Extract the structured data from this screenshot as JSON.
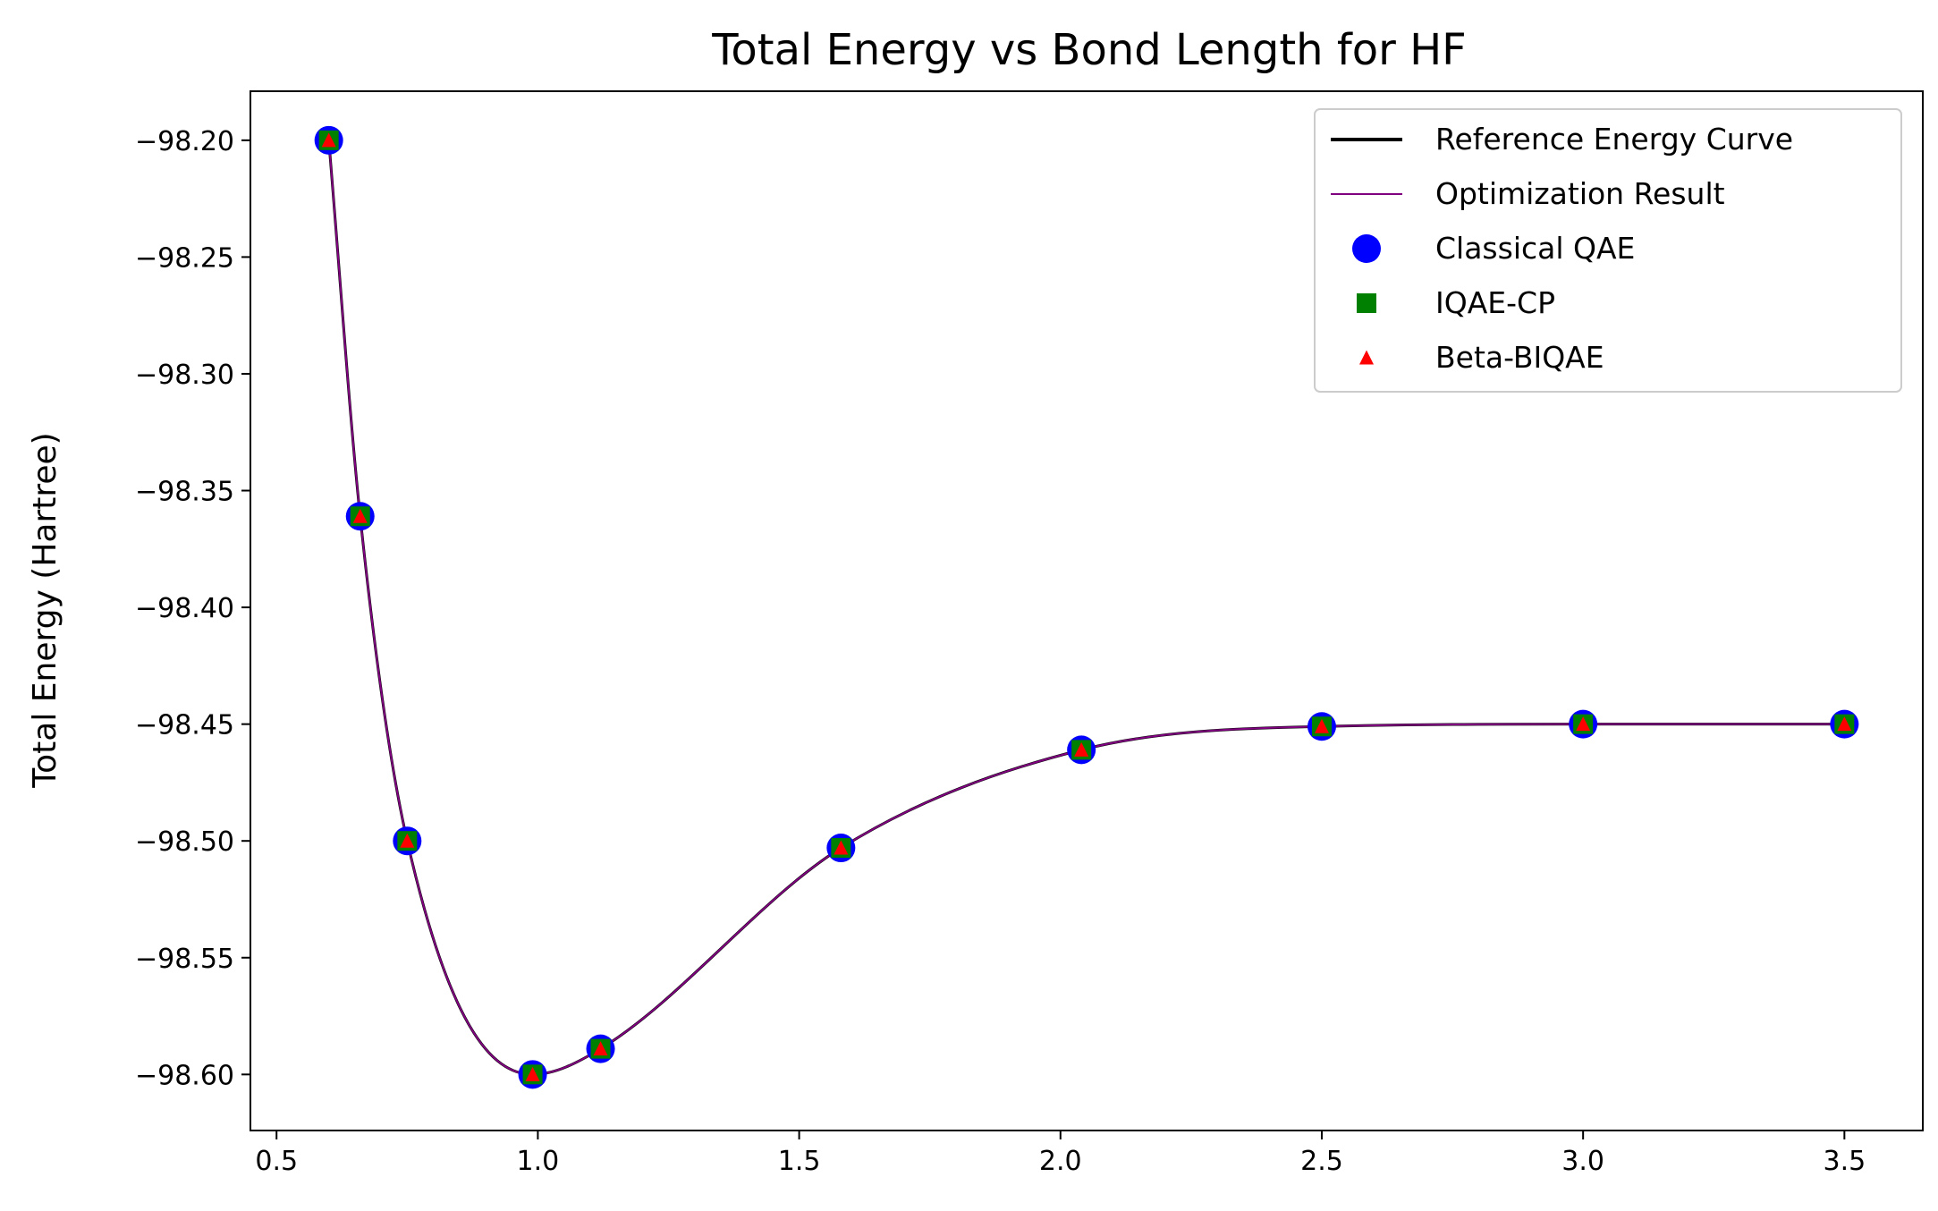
{
  "chart_data": {
    "type": "line",
    "title": "Total Energy vs Bond Length for HF",
    "xlabel": "",
    "ylabel": "Total Energy (Hartree)",
    "xlim": [
      0.45,
      3.65
    ],
    "ylim": [
      -98.624,
      -98.179
    ],
    "x_ticks": [
      0.5,
      1.0,
      1.5,
      2.0,
      2.5,
      3.0,
      3.5
    ],
    "x_tick_labels": [
      "0.5",
      "1.0",
      "1.5",
      "2.0",
      "2.5",
      "3.0",
      "3.5"
    ],
    "y_ticks": [
      -98.2,
      -98.25,
      -98.3,
      -98.35,
      -98.4,
      -98.45,
      -98.5,
      -98.55,
      -98.6
    ],
    "y_tick_labels": [
      "−98.20",
      "−98.25",
      "−98.30",
      "−98.35",
      "−98.40",
      "−98.45",
      "−98.50",
      "−98.55",
      "−98.60"
    ],
    "grid": false,
    "legend_position": "top-right",
    "x": [
      0.6,
      0.66,
      0.75,
      0.99,
      1.12,
      1.58,
      2.04,
      2.5,
      3.0,
      3.5
    ],
    "series": [
      {
        "name": "Reference Energy Curve",
        "kind": "line",
        "color": "#000000",
        "values": [
          -98.2,
          -98.361,
          -98.5,
          -98.6,
          -98.589,
          -98.503,
          -98.461,
          -98.451,
          -98.45,
          -98.45
        ]
      },
      {
        "name": "Optimization Result",
        "kind": "line",
        "color": "#800080",
        "values": [
          -98.2,
          -98.361,
          -98.5,
          -98.6,
          -98.589,
          -98.503,
          -98.461,
          -98.451,
          -98.45,
          -98.45
        ]
      },
      {
        "name": "Classical QAE",
        "kind": "marker",
        "marker": "circle",
        "color": "#0000ff",
        "values": [
          -98.2,
          -98.361,
          -98.5,
          -98.6,
          -98.589,
          -98.503,
          -98.461,
          -98.451,
          -98.45,
          -98.45
        ]
      },
      {
        "name": "IQAE-CP",
        "kind": "marker",
        "marker": "square",
        "color": "#008000",
        "values": [
          -98.2,
          -98.361,
          -98.5,
          -98.6,
          -98.589,
          -98.503,
          -98.461,
          -98.451,
          -98.45,
          -98.45
        ]
      },
      {
        "name": "Beta-BIQAE",
        "kind": "marker",
        "marker": "triangle",
        "color": "#ff0000",
        "values": [
          -98.2,
          -98.361,
          -98.5,
          -98.6,
          -98.589,
          -98.503,
          -98.461,
          -98.451,
          -98.45,
          -98.45
        ]
      }
    ]
  }
}
